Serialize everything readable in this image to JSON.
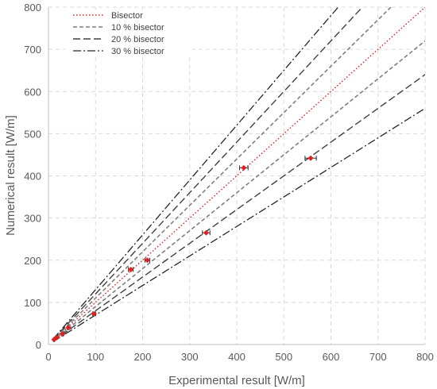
{
  "chart_data": {
    "type": "scatter",
    "xlabel": "Experimental result [W/m]",
    "ylabel": "Numerical result [W/m]",
    "xlim": [
      0,
      800
    ],
    "ylim": [
      0,
      800
    ],
    "x_ticks": [
      0,
      100,
      200,
      300,
      400,
      500,
      600,
      700,
      800
    ],
    "y_ticks": [
      0,
      100,
      200,
      300,
      400,
      500,
      600,
      700,
      800
    ],
    "grid": "dashed",
    "legend_position": "top-left",
    "lines": [
      {
        "name": "Bisector",
        "style": "dotted",
        "color": "#e02020",
        "factors": [
          1.0
        ]
      },
      {
        "name": "10 % bisector",
        "style": "dashed",
        "color": "#7f7f7f",
        "factors": [
          0.9,
          1.1
        ]
      },
      {
        "name": "20 % bisector",
        "style": "long-dashed",
        "color": "#404040",
        "factors": [
          0.8,
          1.2
        ]
      },
      {
        "name": "30 % bisector",
        "style": "dash-dot",
        "color": "#262626",
        "factors": [
          0.7,
          1.3
        ]
      }
    ],
    "points": {
      "color": "#e02020",
      "marker": "diamond",
      "x": [
        12,
        18,
        30,
        42,
        97,
        175,
        210,
        335,
        415,
        557
      ],
      "y": [
        12,
        17,
        25,
        40,
        73,
        178,
        200,
        265,
        419,
        442
      ],
      "x_error": [
        1,
        1,
        2,
        2,
        3,
        5,
        5,
        8,
        9,
        12
      ]
    }
  }
}
